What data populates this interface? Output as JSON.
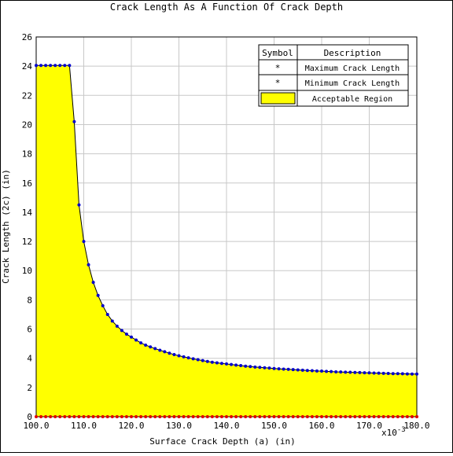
{
  "chart_data": {
    "type": "area",
    "title": "Crack Length As A Function Of Crack Depth",
    "xlabel": "Surface Crack Depth (a)  (in)",
    "ylabel": "Crack Length (2c)  (in)",
    "x_multiplier_label": "x10",
    "x_multiplier_exponent": "-3",
    "xlim": [
      100,
      180
    ],
    "ylim": [
      0,
      26
    ],
    "x_ticks": [
      100,
      110,
      120,
      130,
      140,
      150,
      160,
      170,
      180
    ],
    "x_tick_labels": [
      "100.0",
      "110.0",
      "120.0",
      "130.0",
      "140.0",
      "150.0",
      "160.0",
      "170.0",
      "180.0"
    ],
    "y_ticks": [
      0,
      2,
      4,
      6,
      8,
      10,
      12,
      14,
      16,
      18,
      20,
      22,
      24,
      26
    ],
    "y_tick_labels": [
      "0",
      "2",
      "4",
      "6",
      "8",
      "10",
      "12",
      "14",
      "16",
      "18",
      "20",
      "22",
      "24",
      "26"
    ],
    "grid": true,
    "legend": {
      "placement": "top-right",
      "header_symbol": "Symbol",
      "header_description": "Description",
      "entries": [
        {
          "symbol": "star",
          "color": "#0000cc",
          "label": "Maximum Crack Length"
        },
        {
          "symbol": "star",
          "color": "#e00000",
          "label": "Minimum Crack Length"
        },
        {
          "symbol": "box",
          "color": "#ffff00",
          "label": "Acceptable Region"
        }
      ]
    },
    "colors": {
      "max": "#0000cc",
      "min": "#e00000",
      "fill": "#ffff00",
      "grid": "#c8c8c8"
    },
    "series": [
      {
        "name": "Maximum Crack Length",
        "x": [
          100,
          101,
          102,
          103,
          104,
          105,
          106,
          107,
          108,
          109,
          110,
          111,
          112,
          113,
          114,
          115,
          116,
          117,
          118,
          119,
          120,
          121,
          122,
          123,
          124,
          125,
          126,
          127,
          128,
          129,
          130,
          131,
          132,
          133,
          134,
          135,
          136,
          137,
          138,
          139,
          140,
          141,
          142,
          143,
          144,
          145,
          146,
          147,
          148,
          149,
          150,
          151,
          152,
          153,
          154,
          155,
          156,
          157,
          158,
          159,
          160,
          161,
          162,
          163,
          164,
          165,
          166,
          167,
          168,
          169,
          170,
          171,
          172,
          173,
          174,
          175,
          176,
          177,
          178,
          179,
          180
        ],
        "y": [
          24.05,
          24.05,
          24.05,
          24.05,
          24.05,
          24.05,
          24.05,
          24.05,
          20.2,
          14.5,
          12.0,
          10.4,
          9.2,
          8.3,
          7.6,
          7.0,
          6.55,
          6.2,
          5.9,
          5.65,
          5.45,
          5.25,
          5.05,
          4.9,
          4.78,
          4.66,
          4.55,
          4.45,
          4.35,
          4.25,
          4.17,
          4.1,
          4.03,
          3.96,
          3.9,
          3.84,
          3.78,
          3.73,
          3.69,
          3.65,
          3.61,
          3.57,
          3.53,
          3.5,
          3.46,
          3.43,
          3.4,
          3.38,
          3.35,
          3.33,
          3.3,
          3.28,
          3.26,
          3.24,
          3.22,
          3.2,
          3.18,
          3.16,
          3.15,
          3.13,
          3.12,
          3.1,
          3.09,
          3.07,
          3.06,
          3.05,
          3.04,
          3.03,
          3.02,
          3.01,
          3.0,
          2.99,
          2.98,
          2.97,
          2.96,
          2.95,
          2.95,
          2.94,
          2.93,
          2.92,
          2.92
        ]
      },
      {
        "name": "Minimum Crack Length",
        "x": [
          100,
          101,
          102,
          103,
          104,
          105,
          106,
          107,
          108,
          109,
          110,
          111,
          112,
          113,
          114,
          115,
          116,
          117,
          118,
          119,
          120,
          121,
          122,
          123,
          124,
          125,
          126,
          127,
          128,
          129,
          130,
          131,
          132,
          133,
          134,
          135,
          136,
          137,
          138,
          139,
          140,
          141,
          142,
          143,
          144,
          145,
          146,
          147,
          148,
          149,
          150,
          151,
          152,
          153,
          154,
          155,
          156,
          157,
          158,
          159,
          160,
          161,
          162,
          163,
          164,
          165,
          166,
          167,
          168,
          169,
          170,
          171,
          172,
          173,
          174,
          175,
          176,
          177,
          178,
          179,
          180
        ],
        "y": [
          0,
          0,
          0,
          0,
          0,
          0,
          0,
          0,
          0,
          0,
          0,
          0,
          0,
          0,
          0,
          0,
          0,
          0,
          0,
          0,
          0,
          0,
          0,
          0,
          0,
          0,
          0,
          0,
          0,
          0,
          0,
          0,
          0,
          0,
          0,
          0,
          0,
          0,
          0,
          0,
          0,
          0,
          0,
          0,
          0,
          0,
          0,
          0,
          0,
          0,
          0,
          0,
          0,
          0,
          0,
          0,
          0,
          0,
          0,
          0,
          0,
          0,
          0,
          0,
          0,
          0,
          0,
          0,
          0,
          0,
          0,
          0,
          0,
          0,
          0,
          0,
          0,
          0,
          0,
          0,
          0
        ]
      }
    ]
  }
}
